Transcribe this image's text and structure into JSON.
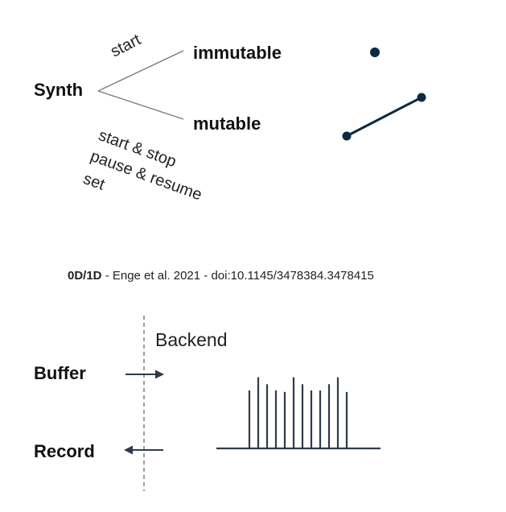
{
  "diagram_top": {
    "root": "Synth",
    "branch_upper": {
      "label": "start",
      "target": "immutable"
    },
    "branch_lower": {
      "labels": [
        "start & stop",
        "pause & resume",
        "set"
      ],
      "target": "mutable"
    }
  },
  "caption": {
    "bold": "0D/1D",
    "rest": " - Enge et al. 2021 - doi:10.1145/3478384.3478415"
  },
  "diagram_bottom": {
    "backend_label": "Backend",
    "buffer_label": "Buffer",
    "record_label": "Record",
    "bar_values": [
      0.74,
      0.91,
      0.82,
      0.74,
      0.72,
      0.91,
      0.82,
      0.74,
      0.74,
      0.82,
      0.91,
      0.72
    ]
  },
  "colors": {
    "dark_navy": "#0d2a3f",
    "slate": "#2f3a4b",
    "line_gray": "#777777"
  }
}
